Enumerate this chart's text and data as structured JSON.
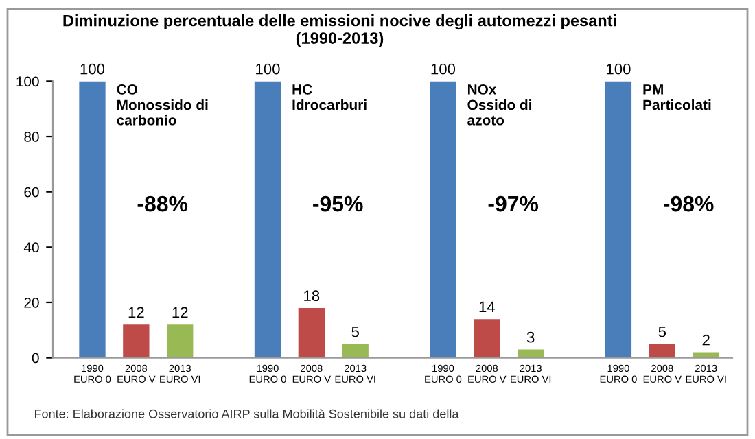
{
  "chart_data": {
    "type": "bar",
    "title": "Diminuzione percentuale delle emissioni nocive degli automezzi pesanti\n(1990-2013)",
    "categories": [
      "1990\nEURO 0",
      "2008\nEURO V",
      "2013\nEURO VI",
      null,
      "1990\nEURO 0",
      "2008\nEURO V",
      "2013\nEURO VI",
      null,
      "1990\nEURO 0",
      "2008\nEURO V",
      "2013\nEURO VI",
      null,
      "1990\nEURO 0",
      "2008\nEURO V",
      "2013\nEURO VI"
    ],
    "values": [
      100,
      12,
      12,
      null,
      100,
      18,
      5,
      null,
      100,
      14,
      3,
      null,
      100,
      5,
      2
    ],
    "colors": [
      "#4a7ebb",
      "#be4b48",
      "#98b954",
      null,
      "#4a7ebb",
      "#be4b48",
      "#98b954",
      null,
      "#4a7ebb",
      "#be4b48",
      "#98b954",
      null,
      "#4a7ebb",
      "#be4b48",
      "#98b954"
    ],
    "ylim": [
      0,
      100
    ],
    "yticks": [
      0,
      20,
      40,
      60,
      80,
      100
    ],
    "grid": false,
    "data_labels": true,
    "annotations": [
      "CO\nMonossido di\ncarbonio",
      "-88%",
      "HC\nIdrocarburi",
      "-95%",
      "NOx\nOssido di\nazoto",
      "-97%",
      "PM\nParticolati",
      "-98%",
      "Fonte: Elaborazione Osservatorio AIRP sulla Mobilità Sostenibile su dati della"
    ]
  }
}
